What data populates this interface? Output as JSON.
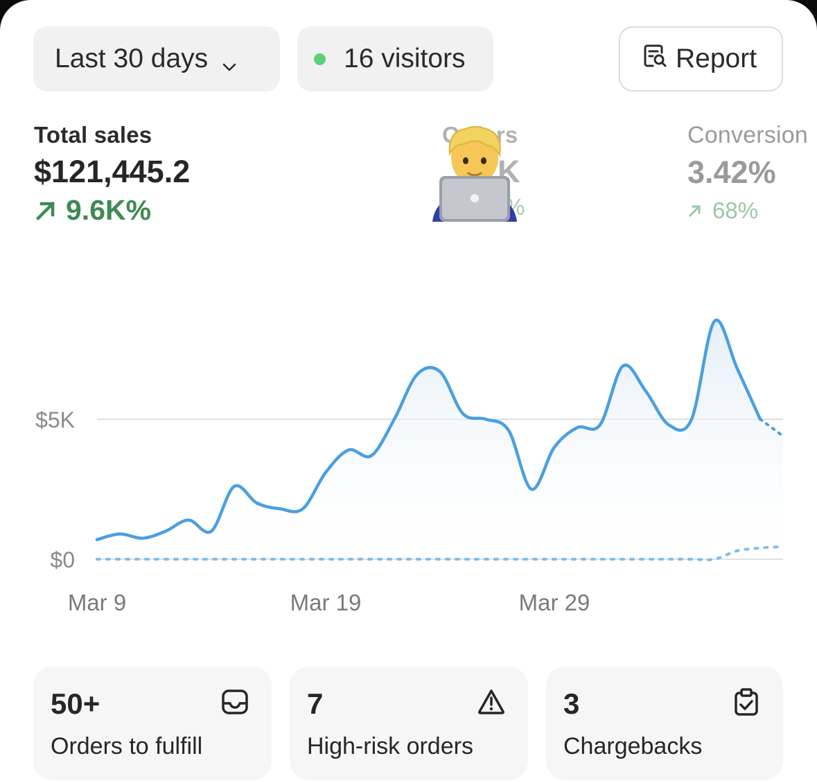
{
  "filters": {
    "date_range_label": "Last 30 days",
    "visitors_label": "16 visitors",
    "visitors_dot_color": "#5ad27a"
  },
  "report_button": {
    "label": "Report",
    "icon": "report-search-icon"
  },
  "metrics": {
    "total_sales": {
      "label": "Total sales",
      "value": "$121,445.2",
      "change": "9.6K%",
      "change_icon": "arrow-up-right-icon",
      "change_color": "#3f8a53"
    },
    "orders": {
      "label": "Orders",
      "value": "K",
      "change": "%"
    },
    "conversion": {
      "label": "Conversion",
      "value": "3.42%",
      "change": "68%",
      "change_icon": "arrow-up-right-icon"
    }
  },
  "overlay_emoji": "man-technologist-emoji",
  "chart_data": {
    "type": "line",
    "y_ticks": [
      "$5K",
      "$0"
    ],
    "x_ticks": [
      "Mar 9",
      "Mar 19",
      "Mar 29"
    ],
    "x": [
      "Mar 9",
      "Mar 10",
      "Mar 11",
      "Mar 12",
      "Mar 13",
      "Mar 14",
      "Mar 15",
      "Mar 16",
      "Mar 17",
      "Mar 18",
      "Mar 19",
      "Mar 20",
      "Mar 21",
      "Mar 22",
      "Mar 23",
      "Mar 24",
      "Mar 25",
      "Mar 26",
      "Mar 27",
      "Mar 28",
      "Mar 29",
      "Mar 30",
      "Mar 31",
      "Apr 1",
      "Apr 2",
      "Apr 3",
      "Apr 4",
      "Apr 5",
      "Apr 6",
      "Apr 7",
      "Apr 8"
    ],
    "ylim": [
      0,
      8500
    ],
    "grid": true,
    "series": [
      {
        "values": [
          700,
          900,
          750,
          1000,
          1400,
          1000,
          2600,
          2000,
          1800,
          1800,
          3100,
          3900,
          3700,
          5000,
          6600,
          6700,
          5200,
          5000,
          4600,
          2500,
          4000,
          4700,
          4800,
          6900,
          6000,
          4800,
          5000,
          8500,
          6800,
          5000,
          4400
        ],
        "style": "solid",
        "color": "#4a9fe0",
        "projected_from_index": 29
      },
      {
        "values": [
          0,
          0,
          0,
          0,
          0,
          0,
          0,
          0,
          0,
          0,
          0,
          0,
          0,
          0,
          0,
          0,
          0,
          0,
          0,
          0,
          0,
          0,
          0,
          0,
          0,
          0,
          0,
          0,
          300,
          400,
          450
        ],
        "style": "dotted",
        "color": "#7fbde9"
      }
    ]
  },
  "tiles": [
    {
      "value": "50+",
      "label": "Orders to fulfill",
      "icon": "inbox-tray-icon"
    },
    {
      "value": "7",
      "label": "High-risk orders",
      "icon": "warning-triangle-icon"
    },
    {
      "value": "3",
      "label": "Chargebacks",
      "icon": "clipboard-check-icon"
    }
  ]
}
